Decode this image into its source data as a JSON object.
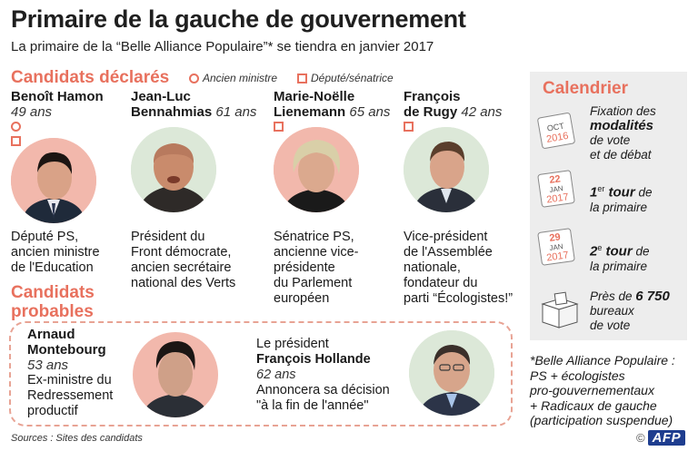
{
  "header": {
    "title": "Primaire de la gauche de gouvernement",
    "subtitle": "La primaire de la “Belle Alliance Populaire”* se tiendra en janvier 2017"
  },
  "declared": {
    "heading": "Candidats déclarés",
    "legend_former_minister": "Ancien ministre",
    "legend_deputy": "Député/sénatrice",
    "candidates": [
      {
        "name_line1": "Benoît Hamon",
        "name_line2": "",
        "age": "49 ans",
        "desc": [
          "Député PS,",
          "ancien ministre",
          "de l'Education"
        ],
        "former_minister": true,
        "deputy": true
      },
      {
        "name_line1": "Jean-Luc",
        "name_line2": "Bennahmias",
        "age": "61 ans",
        "desc": [
          "Président du",
          "Front démocrate,",
          "ancien secrétaire",
          "national des Verts"
        ],
        "former_minister": false,
        "deputy": false
      },
      {
        "name_line1": "Marie-Noëlle",
        "name_line2": "Lienemann",
        "age": "65 ans",
        "desc": [
          "Sénatrice PS,",
          "ancienne vice-",
          "présidente",
          "du Parlement",
          "européen"
        ],
        "former_minister": false,
        "deputy": true
      },
      {
        "name_line1": "François",
        "name_line2": "de Rugy",
        "age": "42 ans",
        "desc": [
          "Vice-président",
          "de l'Assemblée",
          "nationale,",
          "fondateur du",
          "parti “Écologistes!”"
        ],
        "former_minister": false,
        "deputy": true
      }
    ]
  },
  "probable": {
    "heading_line1": "Candidats",
    "heading_line2": "probables",
    "montebourg": {
      "name_line1": "Arnaud",
      "name_line2": "Montebourg",
      "age": "53 ans",
      "desc": [
        "Ex-ministre du",
        "Redressement",
        "productif"
      ]
    },
    "hollande": {
      "intro": "Le président",
      "name": "François Hollande",
      "age": "62 ans",
      "desc": [
        "Annoncera sa décision",
        "\"à la fin de l'année\""
      ]
    }
  },
  "calendar": {
    "title": "Calendrier",
    "items": [
      {
        "icon_day": "",
        "icon_month": "OCT",
        "icon_year": "2016",
        "text_line1": "Fixation des",
        "text_bold": "modalités",
        "text_line3": "de vote",
        "text_line4": "et de débat"
      },
      {
        "icon_day": "22",
        "icon_month": "JAN",
        "icon_year": "2017",
        "text_num": "1",
        "text_sup": "er",
        "text_bold": " tour",
        "text_rest": " de",
        "text_line2": "la primaire"
      },
      {
        "icon_day": "29",
        "icon_month": "JAN",
        "icon_year": "2017",
        "text_num": "2",
        "text_sup": "e",
        "text_bold": " tour",
        "text_rest": " de",
        "text_line2": "la primaire"
      },
      {
        "text_line1": "Près de",
        "text_bold": "6 750",
        "text_line2": "bureaux",
        "text_line3": "de vote"
      }
    ]
  },
  "footnote": {
    "heading": "*Belle Alliance Populaire :",
    "lines": [
      "PS + écologistes",
      "pro-gouvernementaux",
      "+ Radicaux de gauche",
      "(participation suspendue)"
    ]
  },
  "source": "Sources : Sites des candidats",
  "credit": {
    "copyright": "©",
    "agency": "AFP"
  },
  "colors": {
    "accent": "#e8715e",
    "portrait_bg": "#f2b8ac",
    "portrait_bg_green": "#dce8d8",
    "calendar_bg": "#ededed"
  }
}
